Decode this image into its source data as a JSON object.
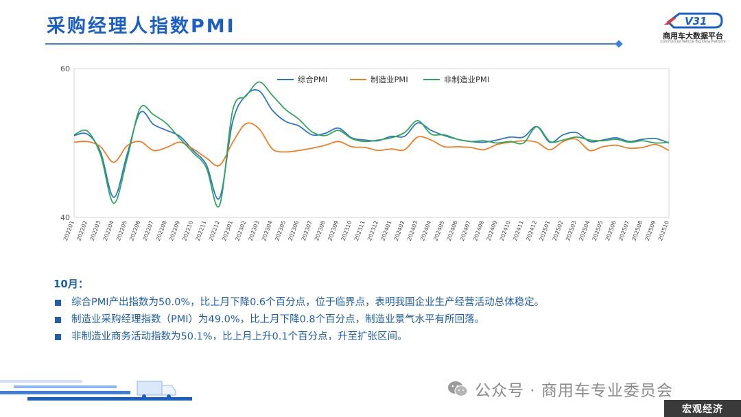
{
  "header": {
    "title": "采购经理人指数PMI",
    "logo_text": "商用车大数据平台",
    "logo_sub": "Commercial Vehicle Big Data Platform",
    "logo_mark": "V31"
  },
  "chart_data": {
    "type": "line",
    "title": "",
    "xlabel": "",
    "ylabel": "",
    "ylim": [
      40,
      60
    ],
    "y_ticks": [
      40,
      60
    ],
    "grid": false,
    "legend_position": "top-center",
    "x": [
      "202201",
      "202202",
      "202203",
      "202204",
      "202205",
      "202206",
      "202207",
      "202208",
      "202209",
      "202210",
      "202211",
      "202212",
      "202301",
      "202302",
      "202303",
      "202304",
      "202305",
      "202306",
      "202307",
      "202308",
      "202309",
      "202310",
      "202311",
      "202312",
      "202401",
      "202402",
      "202403",
      "202404",
      "202405",
      "202406",
      "202407",
      "202408",
      "202409",
      "202410",
      "202411",
      "202412",
      "202501",
      "202502",
      "202503",
      "202504",
      "202505",
      "202506",
      "202507",
      "202508",
      "202509",
      "202510"
    ],
    "series": [
      {
        "name": "综合PMI",
        "color": "#2e75c8",
        "values": [
          51.0,
          51.2,
          48.8,
          42.7,
          48.4,
          54.1,
          52.5,
          51.7,
          50.9,
          49.0,
          47.1,
          42.6,
          52.9,
          56.4,
          57.0,
          54.4,
          52.9,
          52.3,
          51.1,
          51.3,
          52.0,
          50.7,
          50.4,
          50.3,
          50.9,
          50.9,
          52.7,
          51.7,
          51.0,
          50.5,
          50.2,
          50.1,
          50.4,
          50.8,
          50.8,
          52.2,
          50.1,
          51.1,
          51.4,
          50.2,
          50.4,
          50.7,
          50.2,
          50.5,
          50.6,
          50.0
        ]
      },
      {
        "name": "制造业PMI",
        "color": "#f07d25",
        "values": [
          50.1,
          50.2,
          49.5,
          47.4,
          49.6,
          50.2,
          49.0,
          49.4,
          50.1,
          49.2,
          48.0,
          47.0,
          50.1,
          52.6,
          51.9,
          49.2,
          48.8,
          49.0,
          49.3,
          49.7,
          50.2,
          49.5,
          49.4,
          49.0,
          49.2,
          49.1,
          50.8,
          50.4,
          49.5,
          49.5,
          49.4,
          49.1,
          49.8,
          50.1,
          50.3,
          50.1,
          49.1,
          50.2,
          50.5,
          49.0,
          49.5,
          49.7,
          49.3,
          49.4,
          49.8,
          49.0
        ]
      },
      {
        "name": "非制造业PMI",
        "color": "#2fa85a",
        "values": [
          51.1,
          51.6,
          48.4,
          41.9,
          47.8,
          54.7,
          53.8,
          52.6,
          50.6,
          48.7,
          46.7,
          41.6,
          54.4,
          56.3,
          58.2,
          56.4,
          54.5,
          53.2,
          51.5,
          51.0,
          51.7,
          50.6,
          50.2,
          50.4,
          50.7,
          51.4,
          53.0,
          51.2,
          51.1,
          50.5,
          50.2,
          50.3,
          50.0,
          50.2,
          50.0,
          52.2,
          50.2,
          50.4,
          50.8,
          50.4,
          50.3,
          50.5,
          50.1,
          50.3,
          50.0,
          50.1
        ]
      }
    ]
  },
  "notes": {
    "heading": "10月：",
    "items": [
      "综合PMI产出指数为50.0%，比上月下降0.6个百分点，位于临界点，表明我国企业生产经营活动总体稳定。",
      "制造业采购经理指数（PMI）为49.0%，比上月下降0.8个百分点，制造业景气水平有所回落。",
      "非制造业商务活动指数为50.1%，比上月上升0.1个百分点，升至扩张区间。"
    ]
  },
  "footer": {
    "wechat_label": "公众号 · 商用车专业委员会",
    "tag": "宏观经济"
  }
}
